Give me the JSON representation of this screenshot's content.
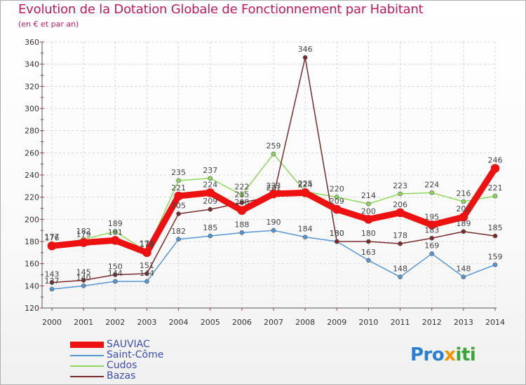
{
  "title": "Evolution de la Dotation Globale de Fonctionnement par Habitant",
  "subtitle": "(en € et par an)",
  "logo": {
    "part1": "Pro",
    "part2": "x",
    "part3": "iti"
  },
  "chart_data": {
    "type": "line",
    "x": [
      "2000",
      "2001",
      "2002",
      "2003",
      "2004",
      "2005",
      "2006",
      "2007",
      "2008",
      "2009",
      "2010",
      "2011",
      "2012",
      "2013",
      "2014"
    ],
    "ylim": [
      120,
      360
    ],
    "yticks": [
      120,
      140,
      160,
      180,
      200,
      220,
      240,
      260,
      280,
      300,
      320,
      340,
      360
    ],
    "grid": true,
    "legend_position": "bottom-left",
    "series": [
      {
        "name": "SAUVIAC",
        "color": "#ee1111",
        "width": 9,
        "values": [
          176,
          179,
          181,
          170,
          221,
          224,
          208,
          223,
          224,
          209,
          200,
          206,
          195,
          202,
          246
        ]
      },
      {
        "name": "Saint-Côme",
        "color": "#5596d2",
        "width": 1.5,
        "values": [
          137,
          140,
          144,
          144,
          182,
          185,
          188,
          190,
          184,
          180,
          163,
          148,
          169,
          148,
          159
        ]
      },
      {
        "name": "Cudos",
        "color": "#8cd65a",
        "width": 1.5,
        "values": [
          177,
          182,
          189,
          171,
          235,
          237,
          222,
          259,
          225,
          220,
          214,
          223,
          224,
          216,
          221
        ]
      },
      {
        "name": "Bazas",
        "color": "#7a2a2a",
        "width": 1.5,
        "values": [
          143,
          145,
          150,
          151,
          205,
          209,
          215,
          221,
          346,
          180,
          180,
          178,
          183,
          189,
          185
        ]
      }
    ]
  }
}
